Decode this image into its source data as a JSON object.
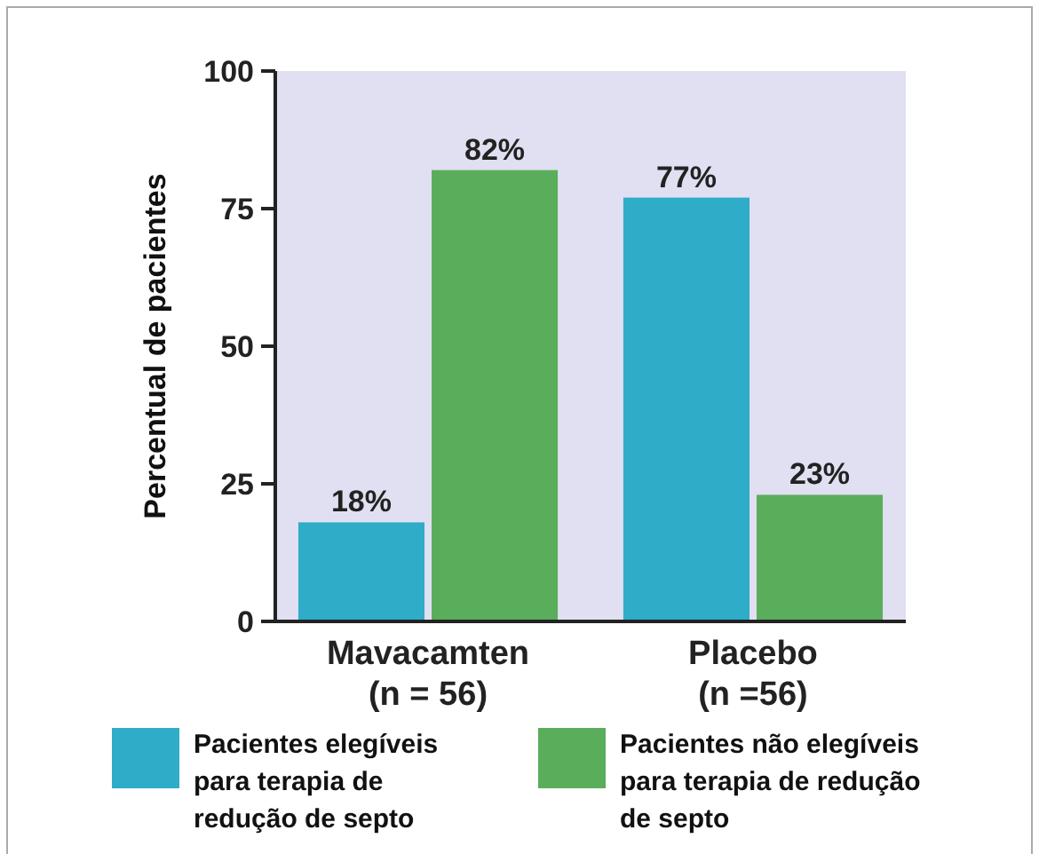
{
  "chart_data": {
    "type": "bar",
    "ylabel": "Percentual de pacientes",
    "categories": [
      "Mavacamten\n(n = 56)",
      "Placebo\n(n =56)"
    ],
    "series": [
      {
        "name": "Pacientes elegíveis para terapia de redução de septo",
        "color": "#2eacc8",
        "values": [
          18,
          77
        ],
        "value_labels": [
          "18%",
          "77%"
        ]
      },
      {
        "name": "Pacientes não elegíveis para terapia de redução de septo",
        "color": "#5aad5a",
        "values": [
          82,
          23
        ],
        "value_labels": [
          "82%",
          "23%"
        ]
      }
    ],
    "ylim": [
      0,
      100
    ],
    "yticks": [
      0,
      25,
      50,
      75,
      100
    ],
    "grid": false,
    "legend": "bottom"
  }
}
